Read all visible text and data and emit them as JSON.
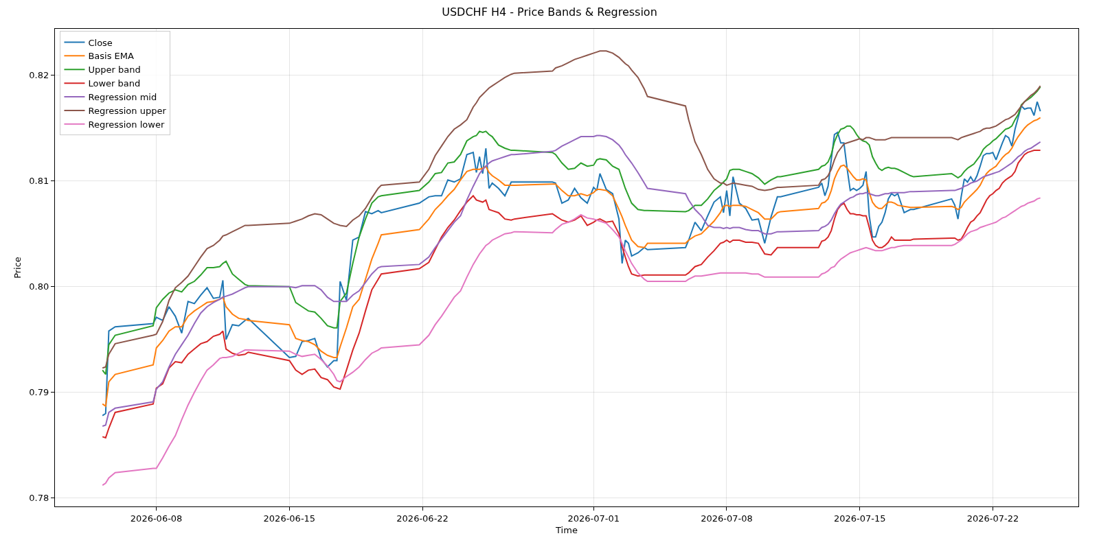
{
  "chart_data": {
    "type": "line",
    "title": "USDCHF H4 - Price Bands & Regression",
    "xlabel": "Time",
    "ylabel": "Price",
    "x": [
      "2026-06-05T04:00",
      "2026-06-05T08:00",
      "2026-06-05T12:00",
      "2026-06-05T20:00",
      "2026-06-07T20:00",
      "2026-06-08T00:00",
      "2026-06-08T08:00",
      "2026-06-08T16:00",
      "2026-06-09T00:00",
      "2026-06-09T08:00",
      "2026-06-09T16:00",
      "2026-06-10T00:00",
      "2026-06-10T08:00",
      "2026-06-10T16:00",
      "2026-06-11T00:00",
      "2026-06-11T08:00",
      "2026-06-11T12:00",
      "2026-06-11T16:00",
      "2026-06-12T00:00",
      "2026-06-12T08:00",
      "2026-06-12T16:00",
      "2026-06-12T20:00",
      "2026-06-15T00:00",
      "2026-06-15T08:00",
      "2026-06-15T16:00",
      "2026-06-16T00:00",
      "2026-06-16T08:00",
      "2026-06-16T16:00",
      "2026-06-17T00:00",
      "2026-06-17T08:00",
      "2026-06-17T12:00",
      "2026-06-17T16:00",
      "2026-06-18T00:00",
      "2026-06-18T08:00",
      "2026-06-18T16:00",
      "2026-06-19T00:00",
      "2026-06-19T08:00",
      "2026-06-19T16:00",
      "2026-06-19T20:00",
      "2026-06-21T20:00",
      "2026-06-22T08:00",
      "2026-06-22T16:00",
      "2026-06-23T00:00",
      "2026-06-23T08:00",
      "2026-06-23T16:00",
      "2026-06-24T00:00",
      "2026-06-24T08:00",
      "2026-06-24T16:00",
      "2026-06-24T20:00",
      "2026-06-25T00:00",
      "2026-06-25T04:00",
      "2026-06-25T08:00",
      "2026-06-25T12:00",
      "2026-06-25T16:00",
      "2026-06-26T00:00",
      "2026-06-26T08:00",
      "2026-06-26T16:00",
      "2026-06-26T20:00",
      "2026-06-28T20:00",
      "2026-06-29T00:00",
      "2026-06-29T08:00",
      "2026-06-29T16:00",
      "2026-06-30T00:00",
      "2026-06-30T08:00",
      "2026-06-30T16:00",
      "2026-07-01T00:00",
      "2026-07-01T04:00",
      "2026-07-01T08:00",
      "2026-07-01T16:00",
      "2026-07-02T00:00",
      "2026-07-02T08:00",
      "2026-07-02T12:00",
      "2026-07-02T16:00",
      "2026-07-02T20:00",
      "2026-07-03T00:00",
      "2026-07-03T08:00",
      "2026-07-03T16:00",
      "2026-07-03T20:00",
      "2026-07-05T20:00",
      "2026-07-06T00:00",
      "2026-07-06T08:00",
      "2026-07-06T16:00",
      "2026-07-07T00:00",
      "2026-07-07T08:00",
      "2026-07-07T16:00",
      "2026-07-07T20:00",
      "2026-07-08T00:00",
      "2026-07-08T04:00",
      "2026-07-08T08:00",
      "2026-07-08T16:00",
      "2026-07-09T00:00",
      "2026-07-09T08:00",
      "2026-07-09T16:00",
      "2026-07-10T00:00",
      "2026-07-10T08:00",
      "2026-07-10T16:00",
      "2026-07-10T20:00",
      "2026-07-12T20:00",
      "2026-07-13T00:00",
      "2026-07-13T04:00",
      "2026-07-13T08:00",
      "2026-07-13T12:00",
      "2026-07-13T16:00",
      "2026-07-13T20:00",
      "2026-07-14T00:00",
      "2026-07-14T04:00",
      "2026-07-14T08:00",
      "2026-07-14T12:00",
      "2026-07-14T16:00",
      "2026-07-14T20:00",
      "2026-07-15T00:00",
      "2026-07-15T04:00",
      "2026-07-15T08:00",
      "2026-07-15T12:00",
      "2026-07-15T16:00",
      "2026-07-15T20:00",
      "2026-07-16T00:00",
      "2026-07-16T04:00",
      "2026-07-16T08:00",
      "2026-07-16T12:00",
      "2026-07-16T16:00",
      "2026-07-16T20:00",
      "2026-07-17T00:00",
      "2026-07-17T08:00",
      "2026-07-17T16:00",
      "2026-07-17T20:00",
      "2026-07-19T20:00",
      "2026-07-20T00:00",
      "2026-07-20T04:00",
      "2026-07-20T08:00",
      "2026-07-20T12:00",
      "2026-07-20T16:00",
      "2026-07-20T20:00",
      "2026-07-21T00:00",
      "2026-07-21T04:00",
      "2026-07-21T08:00",
      "2026-07-21T12:00",
      "2026-07-21T16:00",
      "2026-07-21T20:00",
      "2026-07-22T00:00",
      "2026-07-22T04:00",
      "2026-07-22T08:00",
      "2026-07-22T12:00",
      "2026-07-22T16:00",
      "2026-07-22T20:00",
      "2026-07-23T00:00",
      "2026-07-23T04:00",
      "2026-07-23T08:00",
      "2026-07-23T12:00",
      "2026-07-23T16:00",
      "2026-07-23T20:00",
      "2026-07-24T00:00",
      "2026-07-24T04:00",
      "2026-07-24T08:00",
      "2026-07-24T12:00"
    ],
    "series": [
      {
        "name": "Close",
        "color": "#1f77b4",
        "values": [
          0.7878,
          0.788,
          0.7958,
          0.7962,
          0.7965,
          0.7971,
          0.7968,
          0.7981,
          0.7972,
          0.7956,
          0.7986,
          0.7984,
          0.7992,
          0.7999,
          0.7989,
          0.799,
          0.8006,
          0.795,
          0.7964,
          0.7963,
          0.7968,
          0.797,
          0.7933,
          0.7934,
          0.7948,
          0.7949,
          0.7951,
          0.7932,
          0.7924,
          0.793,
          0.793,
          0.8005,
          0.7987,
          0.8044,
          0.8047,
          0.8071,
          0.8069,
          0.8072,
          0.807,
          0.8079,
          0.8085,
          0.8086,
          0.8086,
          0.8101,
          0.8099,
          0.8102,
          0.8125,
          0.8127,
          0.8108,
          0.8123,
          0.8107,
          0.8131,
          0.8093,
          0.8098,
          0.8093,
          0.8086,
          0.8099,
          0.8099,
          0.8099,
          0.8098,
          0.8079,
          0.8082,
          0.8093,
          0.8084,
          0.8079,
          0.8094,
          0.8091,
          0.8107,
          0.8092,
          0.8088,
          0.8064,
          0.8022,
          0.8044,
          0.8041,
          0.8029,
          0.8032,
          0.8037,
          0.8035,
          0.8037,
          0.8044,
          0.8061,
          0.8053,
          0.8067,
          0.808,
          0.8085,
          0.807,
          0.8091,
          0.8067,
          0.8104,
          0.8079,
          0.8074,
          0.8063,
          0.8064,
          0.8041,
          0.8066,
          0.8085,
          0.8085,
          0.8094,
          0.8098,
          0.8086,
          0.8095,
          0.812,
          0.8144,
          0.8146,
          0.8136,
          0.8136,
          0.8112,
          0.8091,
          0.8093,
          0.8091,
          0.8093,
          0.8096,
          0.8109,
          0.8067,
          0.8047,
          0.8047,
          0.8057,
          0.8061,
          0.807,
          0.8083,
          0.8088,
          0.8086,
          0.8088,
          0.807,
          0.8073,
          0.8073,
          0.8083,
          0.8077,
          0.8064,
          0.8085,
          0.8102,
          0.8099,
          0.8104,
          0.8099,
          0.8105,
          0.8114,
          0.8124,
          0.8126,
          0.8126,
          0.8127,
          0.812,
          0.8128,
          0.8136,
          0.8143,
          0.8141,
          0.8133,
          0.8149,
          0.816,
          0.8171,
          0.8168,
          0.8169,
          0.8169,
          0.8162,
          0.8175,
          0.8166
        ]
      },
      {
        "name": "Basis EMA",
        "color": "#ff7f0e",
        "values": [
          0.7889,
          0.7887,
          0.791,
          0.7917,
          0.7926,
          0.7942,
          0.7949,
          0.7958,
          0.7962,
          0.7962,
          0.7972,
          0.7977,
          0.7981,
          0.7985,
          0.7986,
          0.7988,
          0.799,
          0.7981,
          0.7974,
          0.797,
          0.7969,
          0.7968,
          0.7964,
          0.7951,
          0.7949,
          0.7948,
          0.7945,
          0.7939,
          0.7935,
          0.7933,
          0.7933,
          0.7943,
          0.7961,
          0.7981,
          0.7988,
          0.8007,
          0.8026,
          0.8041,
          0.8049,
          0.8054,
          0.8064,
          0.8073,
          0.8079,
          0.8086,
          0.8092,
          0.8101,
          0.8109,
          0.8111,
          0.8111,
          0.8111,
          0.8112,
          0.8114,
          0.8108,
          0.8105,
          0.8101,
          0.8096,
          0.8096,
          0.8096,
          0.8097,
          0.8097,
          0.8091,
          0.8086,
          0.8086,
          0.8088,
          0.8086,
          0.8089,
          0.8092,
          0.8092,
          0.8091,
          0.8086,
          0.8073,
          0.8066,
          0.8058,
          0.8051,
          0.8044,
          0.8038,
          0.8037,
          0.8041,
          0.8041,
          0.8044,
          0.8048,
          0.805,
          0.8056,
          0.8062,
          0.807,
          0.8076,
          0.8077,
          0.8076,
          0.8077,
          0.8077,
          0.8076,
          0.8073,
          0.807,
          0.8064,
          0.8064,
          0.807,
          0.8071,
          0.8074,
          0.8079,
          0.808,
          0.8083,
          0.8091,
          0.8102,
          0.8109,
          0.8114,
          0.8115,
          0.8112,
          0.8108,
          0.8104,
          0.8101,
          0.8101,
          0.8102,
          0.8101,
          0.8089,
          0.808,
          0.8076,
          0.8074,
          0.8074,
          0.8077,
          0.808,
          0.808,
          0.8079,
          0.8077,
          0.8076,
          0.8075,
          0.8075,
          0.8076,
          0.8075,
          0.8073,
          0.8075,
          0.808,
          0.8083,
          0.8086,
          0.8089,
          0.8092,
          0.8096,
          0.8102,
          0.8107,
          0.811,
          0.8112,
          0.8114,
          0.8118,
          0.8122,
          0.8125,
          0.8127,
          0.8131,
          0.8137,
          0.8142,
          0.8146,
          0.815,
          0.8153,
          0.8155,
          0.8157,
          0.8158,
          0.816
        ]
      },
      {
        "name": "Upper band",
        "color": "#2ca02c",
        "values": [
          0.7921,
          0.7917,
          0.7945,
          0.7954,
          0.7963,
          0.798,
          0.7988,
          0.7994,
          0.7997,
          0.7995,
          0.8002,
          0.8005,
          0.8011,
          0.8018,
          0.8018,
          0.8019,
          0.8022,
          0.8024,
          0.8012,
          0.8007,
          0.8002,
          0.8001,
          0.8,
          0.7985,
          0.7981,
          0.7977,
          0.7976,
          0.797,
          0.7963,
          0.7961,
          0.7961,
          0.7986,
          0.7994,
          0.8022,
          0.8047,
          0.8064,
          0.8079,
          0.8085,
          0.8086,
          0.8091,
          0.8099,
          0.8107,
          0.8108,
          0.8117,
          0.8118,
          0.8125,
          0.8138,
          0.8142,
          0.8143,
          0.8147,
          0.8146,
          0.8147,
          0.8144,
          0.8142,
          0.8134,
          0.8131,
          0.8129,
          0.8129,
          0.8127,
          0.8125,
          0.8117,
          0.8111,
          0.8112,
          0.8117,
          0.8114,
          0.8115,
          0.812,
          0.8121,
          0.812,
          0.8114,
          0.8111,
          0.8102,
          0.8093,
          0.8086,
          0.8079,
          0.8073,
          0.8072,
          0.8072,
          0.8071,
          0.8072,
          0.8077,
          0.8077,
          0.8083,
          0.8091,
          0.8096,
          0.8099,
          0.8102,
          0.811,
          0.8111,
          0.8111,
          0.8109,
          0.8107,
          0.8103,
          0.8097,
          0.8101,
          0.8104,
          0.8104,
          0.8111,
          0.8114,
          0.8115,
          0.8118,
          0.8125,
          0.8137,
          0.8144,
          0.8149,
          0.815,
          0.8152,
          0.8152,
          0.8149,
          0.8144,
          0.814,
          0.8138,
          0.8137,
          0.8134,
          0.8123,
          0.8117,
          0.8112,
          0.811,
          0.8112,
          0.8113,
          0.8112,
          0.8112,
          0.8111,
          0.8108,
          0.8105,
          0.8104,
          0.8107,
          0.8105,
          0.8103,
          0.8105,
          0.8109,
          0.8112,
          0.8114,
          0.8116,
          0.812,
          0.8124,
          0.813,
          0.8133,
          0.8135,
          0.8138,
          0.814,
          0.8143,
          0.8146,
          0.8149,
          0.815,
          0.8152,
          0.8158,
          0.8163,
          0.8172,
          0.8175,
          0.8177,
          0.8179,
          0.8182,
          0.8185,
          0.8189
        ]
      },
      {
        "name": "Lower band",
        "color": "#d62728",
        "values": [
          0.7858,
          0.7857,
          0.7866,
          0.7881,
          0.7889,
          0.7904,
          0.7908,
          0.7923,
          0.7929,
          0.7928,
          0.7936,
          0.7941,
          0.7946,
          0.7948,
          0.7953,
          0.7955,
          0.7958,
          0.7941,
          0.7937,
          0.7935,
          0.7936,
          0.7938,
          0.793,
          0.7921,
          0.7917,
          0.7921,
          0.7922,
          0.7914,
          0.7912,
          0.7905,
          0.7904,
          0.7903,
          0.7921,
          0.794,
          0.7956,
          0.7977,
          0.7997,
          0.8007,
          0.8012,
          0.8017,
          0.8023,
          0.8035,
          0.8047,
          0.8056,
          0.8063,
          0.8072,
          0.808,
          0.8086,
          0.8082,
          0.8081,
          0.808,
          0.8082,
          0.8073,
          0.8072,
          0.807,
          0.8064,
          0.8063,
          0.8064,
          0.8069,
          0.8067,
          0.8063,
          0.8061,
          0.8063,
          0.8067,
          0.8058,
          0.8061,
          0.8063,
          0.8064,
          0.8061,
          0.8062,
          0.805,
          0.8038,
          0.8028,
          0.8019,
          0.8012,
          0.801,
          0.8011,
          0.8011,
          0.8011,
          0.8013,
          0.8019,
          0.8021,
          0.8028,
          0.8034,
          0.8041,
          0.8042,
          0.8044,
          0.8042,
          0.8044,
          0.8044,
          0.8042,
          0.8042,
          0.8041,
          0.8031,
          0.803,
          0.8037,
          0.8037,
          0.8037,
          0.8043,
          0.8044,
          0.8047,
          0.8053,
          0.8064,
          0.8073,
          0.8077,
          0.8079,
          0.8073,
          0.8069,
          0.8069,
          0.8068,
          0.8068,
          0.8067,
          0.8067,
          0.8056,
          0.8044,
          0.8039,
          0.8037,
          0.8037,
          0.8039,
          0.8042,
          0.8047,
          0.8044,
          0.8044,
          0.8044,
          0.8044,
          0.8045,
          0.8046,
          0.8046,
          0.8044,
          0.8045,
          0.805,
          0.8056,
          0.8061,
          0.8063,
          0.8067,
          0.807,
          0.8076,
          0.8082,
          0.8086,
          0.8088,
          0.8091,
          0.8093,
          0.8098,
          0.8101,
          0.8103,
          0.8105,
          0.8109,
          0.8117,
          0.8121,
          0.8125,
          0.8127,
          0.8128,
          0.8129,
          0.8129,
          0.8129
        ]
      },
      {
        "name": "Regression mid",
        "color": "#9467bd",
        "values": [
          0.7868,
          0.7869,
          0.7881,
          0.7885,
          0.7891,
          0.7903,
          0.791,
          0.7924,
          0.7936,
          0.7945,
          0.7954,
          0.7965,
          0.7975,
          0.7981,
          0.7985,
          0.7988,
          0.799,
          0.7991,
          0.7993,
          0.7996,
          0.7999,
          0.8,
          0.8,
          0.7999,
          0.8001,
          0.8001,
          0.8001,
          0.7997,
          0.799,
          0.7986,
          0.7986,
          0.7986,
          0.7986,
          0.7992,
          0.7996,
          0.8004,
          0.8012,
          0.8018,
          0.8019,
          0.8021,
          0.8028,
          0.8037,
          0.8045,
          0.8053,
          0.8061,
          0.8067,
          0.8082,
          0.8095,
          0.8101,
          0.8107,
          0.8111,
          0.8114,
          0.8117,
          0.8119,
          0.8121,
          0.8123,
          0.8125,
          0.8125,
          0.8128,
          0.8129,
          0.8133,
          0.8136,
          0.8139,
          0.8142,
          0.8142,
          0.8142,
          0.8143,
          0.8143,
          0.8142,
          0.8139,
          0.8134,
          0.813,
          0.8125,
          0.8121,
          0.8117,
          0.8108,
          0.8098,
          0.8093,
          0.8088,
          0.8082,
          0.8073,
          0.8067,
          0.8058,
          0.8056,
          0.8056,
          0.8055,
          0.8056,
          0.8055,
          0.8056,
          0.8056,
          0.8054,
          0.8053,
          0.8053,
          0.805,
          0.805,
          0.8052,
          0.8052,
          0.8053,
          0.8056,
          0.8057,
          0.8059,
          0.8063,
          0.8069,
          0.8074,
          0.8078,
          0.808,
          0.8082,
          0.8084,
          0.8085,
          0.8087,
          0.8088,
          0.8088,
          0.8089,
          0.8088,
          0.8087,
          0.8086,
          0.8086,
          0.8087,
          0.8088,
          0.8088,
          0.8089,
          0.8089,
          0.8089,
          0.8089,
          0.809,
          0.809,
          0.8091,
          0.8091,
          0.8092,
          0.8093,
          0.8095,
          0.8096,
          0.8098,
          0.8099,
          0.81,
          0.8102,
          0.8104,
          0.8105,
          0.8106,
          0.8107,
          0.8108,
          0.8109,
          0.8111,
          0.8113,
          0.8115,
          0.8117,
          0.812,
          0.8123,
          0.8125,
          0.8128,
          0.813,
          0.8131,
          0.8133,
          0.8135,
          0.8137
        ]
      },
      {
        "name": "Regression upper",
        "color": "#8c564b",
        "values": [
          0.7923,
          0.7924,
          0.7936,
          0.7946,
          0.7954,
          0.7955,
          0.7967,
          0.7987,
          0.7999,
          0.8004,
          0.801,
          0.8019,
          0.8028,
          0.8036,
          0.8039,
          0.8044,
          0.8048,
          0.8049,
          0.8052,
          0.8055,
          0.8058,
          0.8058,
          0.806,
          0.8062,
          0.8064,
          0.8067,
          0.8069,
          0.8068,
          0.8064,
          0.806,
          0.8059,
          0.8058,
          0.8057,
          0.8063,
          0.8067,
          0.8074,
          0.8084,
          0.8093,
          0.8096,
          0.8099,
          0.8111,
          0.8124,
          0.8133,
          0.8142,
          0.8149,
          0.8153,
          0.8158,
          0.817,
          0.8174,
          0.8179,
          0.8182,
          0.8185,
          0.8188,
          0.819,
          0.8194,
          0.8198,
          0.8201,
          0.8202,
          0.8204,
          0.8207,
          0.8209,
          0.8212,
          0.8215,
          0.8217,
          0.8219,
          0.8221,
          0.8222,
          0.8223,
          0.8223,
          0.8221,
          0.8217,
          0.8214,
          0.8211,
          0.8209,
          0.8205,
          0.8198,
          0.8187,
          0.818,
          0.8171,
          0.8158,
          0.8137,
          0.8125,
          0.8111,
          0.8102,
          0.8098,
          0.8098,
          0.8096,
          0.8097,
          0.8098,
          0.8097,
          0.8096,
          0.8095,
          0.8092,
          0.8091,
          0.8092,
          0.8094,
          0.8094,
          0.8096,
          0.8101,
          0.8102,
          0.8105,
          0.8111,
          0.812,
          0.8127,
          0.8131,
          0.8135,
          0.8136,
          0.8137,
          0.8138,
          0.8139,
          0.814,
          0.8139,
          0.8141,
          0.8141,
          0.814,
          0.8139,
          0.8139,
          0.8139,
          0.8139,
          0.814,
          0.8141,
          0.8141,
          0.8141,
          0.8141,
          0.8141,
          0.8141,
          0.8141,
          0.814,
          0.8139,
          0.8141,
          0.8142,
          0.8143,
          0.8144,
          0.8145,
          0.8146,
          0.8147,
          0.8149,
          0.815,
          0.815,
          0.8151,
          0.8152,
          0.8154,
          0.8156,
          0.8158,
          0.8159,
          0.8161,
          0.8163,
          0.8167,
          0.8171,
          0.8175,
          0.8178,
          0.8181,
          0.8183,
          0.8186,
          0.819
        ]
      },
      {
        "name": "Regression lower",
        "color": "#e377c2",
        "values": [
          0.7812,
          0.7814,
          0.7819,
          0.7824,
          0.7828,
          0.7828,
          0.7838,
          0.7849,
          0.7859,
          0.7874,
          0.7888,
          0.79,
          0.7911,
          0.7921,
          0.7926,
          0.7932,
          0.7933,
          0.7933,
          0.7934,
          0.7937,
          0.794,
          0.794,
          0.7939,
          0.7936,
          0.7934,
          0.7935,
          0.7936,
          0.7931,
          0.7925,
          0.7917,
          0.7911,
          0.791,
          0.7915,
          0.7919,
          0.7924,
          0.7931,
          0.7937,
          0.794,
          0.7942,
          0.7945,
          0.7954,
          0.7964,
          0.7972,
          0.7981,
          0.799,
          0.7996,
          0.8009,
          0.8021,
          0.8026,
          0.8031,
          0.8035,
          0.8039,
          0.8041,
          0.8044,
          0.8047,
          0.805,
          0.8051,
          0.8052,
          0.8051,
          0.8054,
          0.8059,
          0.8061,
          0.8064,
          0.8068,
          0.8065,
          0.8064,
          0.8063,
          0.8062,
          0.806,
          0.8054,
          0.8047,
          0.8041,
          0.8034,
          0.8028,
          0.8022,
          0.8013,
          0.8007,
          0.8005,
          0.8005,
          0.8007,
          0.801,
          0.801,
          0.8011,
          0.8012,
          0.8013,
          0.8013,
          0.8013,
          0.8013,
          0.8013,
          0.8013,
          0.8013,
          0.8012,
          0.8012,
          0.8009,
          0.8009,
          0.8009,
          0.8009,
          0.8009,
          0.8012,
          0.8013,
          0.8015,
          0.8018,
          0.8019,
          0.8023,
          0.8026,
          0.8028,
          0.803,
          0.8032,
          0.8033,
          0.8034,
          0.8035,
          0.8036,
          0.8037,
          0.8036,
          0.8035,
          0.8034,
          0.8034,
          0.8034,
          0.8035,
          0.8036,
          0.8037,
          0.8037,
          0.8038,
          0.8039,
          0.8039,
          0.8039,
          0.8039,
          0.804,
          0.8042,
          0.8044,
          0.8047,
          0.805,
          0.8052,
          0.8053,
          0.8054,
          0.8056,
          0.8057,
          0.8058,
          0.8059,
          0.806,
          0.8061,
          0.8063,
          0.8065,
          0.8066,
          0.8068,
          0.807,
          0.8072,
          0.8074,
          0.8076,
          0.8077,
          0.8079,
          0.808,
          0.8081,
          0.8083,
          0.8084
        ]
      }
    ],
    "xlim": [
      "2026-06-02T16:00",
      "2026-07-26T12:00"
    ],
    "xticks": [
      "2026-06-08",
      "2026-06-15",
      "2026-06-22",
      "2026-07-01",
      "2026-07-08",
      "2026-07-15",
      "2026-07-22"
    ],
    "ylim": [
      0.7792,
      0.8244
    ],
    "yticks": [
      0.78,
      0.79,
      {
        "value": 0.8,
        "label": "0.80"
      },
      0.81,
      0.82
    ],
    "grid": true,
    "legend": "top left",
    "marker": "none",
    "line_style": "solid"
  }
}
